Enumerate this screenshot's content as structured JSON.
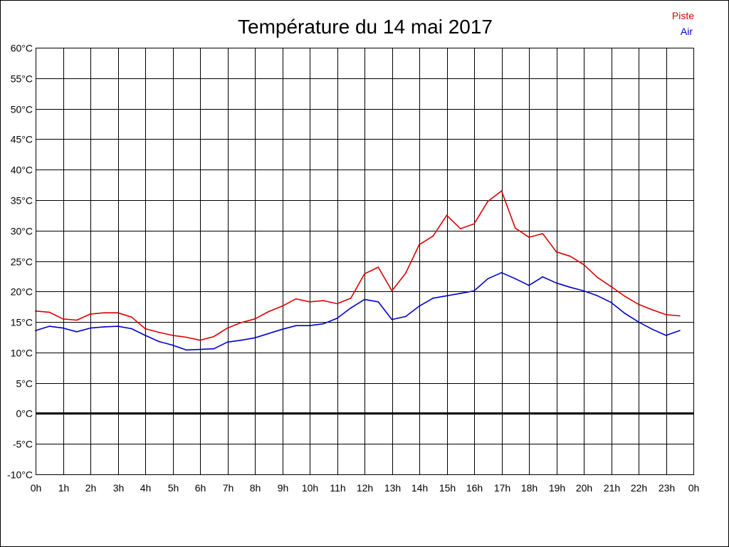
{
  "chart_data": {
    "type": "line",
    "title": "Température du 14 mai 2017",
    "xlabel": "",
    "ylabel": "",
    "x_tick_labels": [
      "0h",
      "1h",
      "2h",
      "3h",
      "4h",
      "5h",
      "6h",
      "7h",
      "8h",
      "9h",
      "10h",
      "11h",
      "12h",
      "13h",
      "14h",
      "15h",
      "16h",
      "17h",
      "18h",
      "19h",
      "20h",
      "21h",
      "22h",
      "23h",
      "0h"
    ],
    "y_tick_labels": [
      "60°C",
      "55°C",
      "50°C",
      "45°C",
      "40°C",
      "35°C",
      "30°C",
      "25°C",
      "20°C",
      "15°C",
      "10°C",
      "5°C",
      "0°C",
      "-5°C",
      "-10°C"
    ],
    "xlim": [
      0,
      24
    ],
    "ylim": [
      -10,
      60
    ],
    "grid": true,
    "legend_position": "top-right",
    "x": [
      0,
      0.5,
      1,
      1.5,
      2,
      2.5,
      3,
      3.5,
      4,
      4.5,
      5,
      5.5,
      6,
      6.5,
      7,
      7.5,
      8,
      8.5,
      9,
      9.5,
      10,
      10.5,
      11,
      11.5,
      12,
      12.5,
      13,
      13.5,
      14,
      14.5,
      15,
      15.5,
      16,
      16.5,
      17,
      17.5,
      18,
      18.5,
      19,
      19.5,
      20,
      20.5,
      21,
      21.5,
      22,
      22.5,
      23,
      23.5
    ],
    "series": [
      {
        "name": "Piste",
        "color": "#dd0000",
        "values": [
          16.8,
          16.6,
          15.5,
          15.3,
          16.3,
          16.5,
          16.5,
          15.8,
          13.9,
          13.3,
          12.8,
          12.5,
          12.0,
          12.6,
          14.0,
          14.9,
          15.5,
          16.7,
          17.6,
          18.8,
          18.3,
          18.5,
          18.0,
          18.9,
          22.9,
          24.0,
          20.1,
          23.0,
          27.7,
          29.1,
          32.5,
          30.3,
          31.1,
          34.8,
          36.5,
          30.4,
          28.9,
          29.5,
          26.5,
          25.8,
          24.4,
          22.3,
          20.8,
          19.2,
          17.9,
          17.0,
          16.2,
          16.0
        ]
      },
      {
        "name": "Air",
        "color": "#0000cc",
        "values": [
          13.6,
          14.3,
          14.0,
          13.4,
          14.0,
          14.2,
          14.3,
          13.9,
          12.8,
          11.8,
          11.2,
          10.4,
          10.5,
          10.6,
          11.7,
          12.0,
          12.4,
          13.1,
          13.8,
          14.4,
          14.4,
          14.7,
          15.6,
          17.3,
          18.7,
          18.3,
          15.4,
          15.9,
          17.6,
          18.9,
          19.3,
          19.7,
          20.1,
          22.1,
          23.1,
          22.1,
          21.0,
          22.4,
          21.4,
          20.7,
          20.1,
          19.3,
          18.2,
          16.4,
          15.0,
          13.8,
          12.8,
          13.6
        ]
      }
    ]
  }
}
